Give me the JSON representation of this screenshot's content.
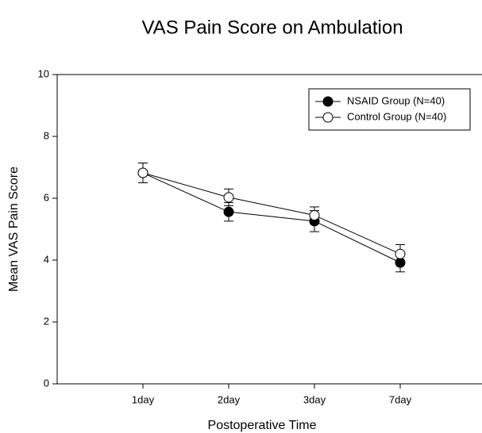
{
  "chart_data": {
    "type": "line",
    "title": "VAS Pain Score on Ambulation",
    "x_label": "Postoperative Time",
    "y_label": "Mean VAS Pain Score",
    "categories": [
      "1day",
      "2day",
      "3day",
      "7day"
    ],
    "series": [
      {
        "name": "NSAID Group (N=40)",
        "color": "#000000",
        "values": [
          6.82,
          5.56,
          5.26,
          3.92
        ],
        "errors": [
          0.32,
          0.3,
          0.34,
          0.3
        ]
      },
      {
        "name": "Control Group (N=40)",
        "color": "#ffffff",
        "values": [
          6.82,
          6.03,
          5.45,
          4.2
        ],
        "errors": [
          0.32,
          0.27,
          0.27,
          0.3
        ]
      }
    ],
    "ylim": [
      0,
      10
    ],
    "yticks": [
      0,
      2,
      4,
      6,
      8,
      10
    ],
    "legend": "upper right"
  }
}
